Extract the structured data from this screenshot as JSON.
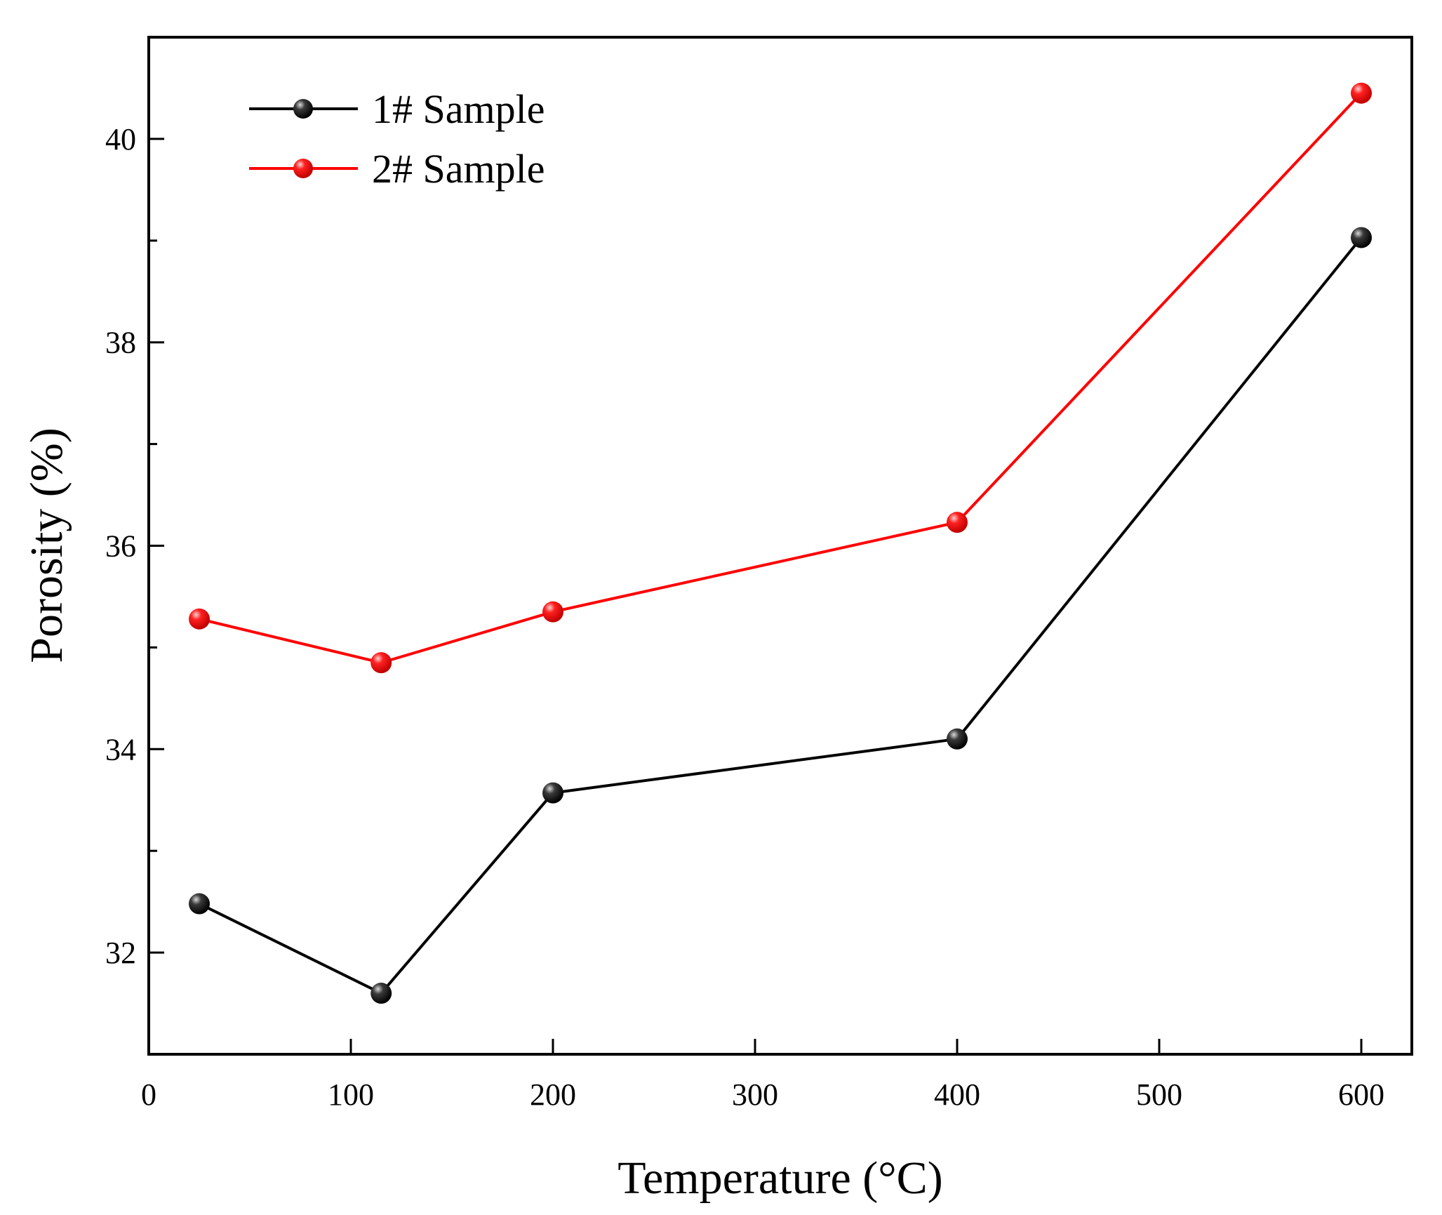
{
  "chart_data": {
    "type": "line",
    "title": "",
    "xlabel": "Temperature (°C)",
    "ylabel": "Porosity (%)",
    "xlim": [
      0,
      625
    ],
    "ylim": [
      31,
      41
    ],
    "xticks": [
      0,
      100,
      200,
      300,
      400,
      500,
      600
    ],
    "yticks_major": [
      32,
      34,
      36,
      38,
      40
    ],
    "yticks_minor": [
      33,
      35,
      37,
      39
    ],
    "xtick_labels": [
      "0",
      "100",
      "200",
      "300",
      "400",
      "500",
      "600"
    ],
    "ytick_labels": [
      "32",
      "34",
      "36",
      "38",
      "40"
    ],
    "grid": false,
    "legend_position": "top-left",
    "series": [
      {
        "name": "1# Sample",
        "color": "#000000",
        "marker_color": "#1a1a1a",
        "x": [
          25,
          115,
          200,
          400,
          600
        ],
        "values": [
          32.48,
          31.6,
          33.57,
          34.1,
          39.03
        ]
      },
      {
        "name": "2# Sample",
        "color": "#ff0000",
        "marker_color": "#ff0000",
        "x": [
          25,
          115,
          200,
          400,
          600
        ],
        "values": [
          35.28,
          34.85,
          35.35,
          36.23,
          40.45
        ]
      }
    ]
  }
}
